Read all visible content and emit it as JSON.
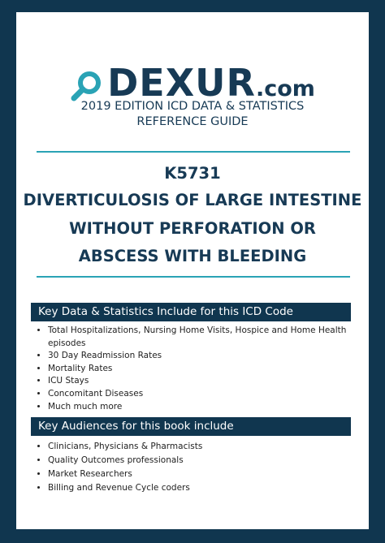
{
  "logo": {
    "name": "DEXUR",
    "suffix": ".com"
  },
  "subtitle": [
    "2019 EDITION ICD DATA & STATISTICS",
    "REFERENCE GUIDE"
  ],
  "code": "K5731",
  "title": [
    "DIVERTICULOSIS OF LARGE INTESTINE",
    "WITHOUT PERFORATION OR",
    "ABSCESS WITH BLEEDING"
  ],
  "sections": [
    {
      "heading": "Key Data & Statistics Include for this ICD Code",
      "items": [
        "Total Hospitalizations, Nursing Home Visits, Hospice and Home Health episodes",
        "30 Day Readmission Rates",
        "Mortality Rates",
        "ICU Stays",
        "Concomitant Diseases",
        "Much much more"
      ]
    },
    {
      "heading": "Key Audiences for this book include",
      "items": [
        "Clinicians, Physicians & Pharmacists",
        "Quality Outcomes professionals",
        "Market Researchers",
        "Billing and Revenue Cycle coders"
      ]
    }
  ]
}
